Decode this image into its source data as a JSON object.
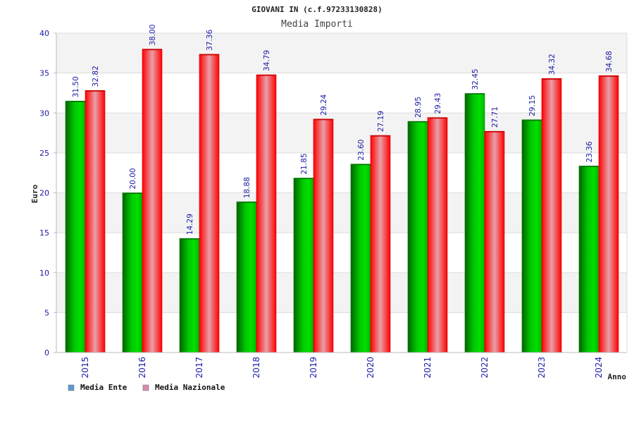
{
  "chart_data": {
    "type": "bar",
    "title": "GIOVANI IN (c.f.97233130828)",
    "subtitle": "Media Importi",
    "xlabel": "Anno",
    "ylabel": "Euro",
    "ylim": [
      0,
      40
    ],
    "yticks": [
      0,
      5,
      10,
      15,
      20,
      25,
      30,
      35,
      40
    ],
    "grid": true,
    "legend_position": "bottom-left",
    "categories": [
      "2015",
      "2016",
      "2017",
      "2018",
      "2019",
      "2020",
      "2021",
      "2022",
      "2023",
      "2024"
    ],
    "series": [
      {
        "name": "Media Ente",
        "color": "#00aa00",
        "legend_color": "#5b9bd5",
        "values": [
          31.5,
          20.0,
          14.29,
          18.88,
          21.85,
          23.6,
          28.95,
          32.45,
          29.15,
          23.36
        ],
        "labels": [
          "31.50",
          "20.00",
          "14.29",
          "18.88",
          "21.85",
          "23.60",
          "28.95",
          "32.45",
          "29.15",
          "23.36"
        ]
      },
      {
        "name": "Media Nazionale",
        "color": "#ee1111",
        "legend_color": "#d98cb3",
        "values": [
          32.82,
          38.0,
          37.36,
          34.79,
          29.24,
          27.19,
          29.43,
          27.71,
          34.32,
          34.68
        ],
        "labels": [
          "32.82",
          "38.00",
          "37.36",
          "34.79",
          "29.24",
          "27.19",
          "29.43",
          "27.71",
          "34.32",
          "34.68"
        ]
      }
    ]
  }
}
